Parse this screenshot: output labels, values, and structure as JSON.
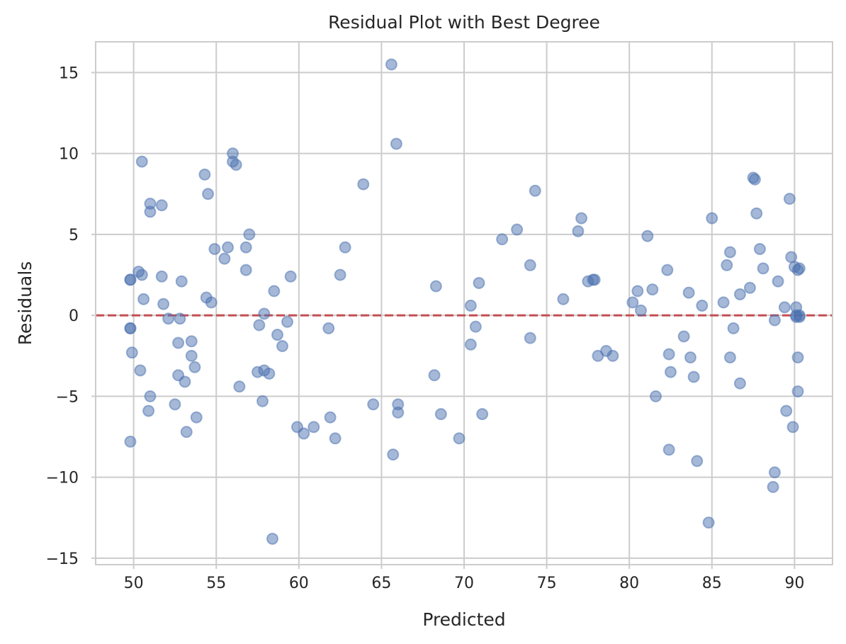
{
  "chart_data": {
    "type": "scatter",
    "title": "Residual Plot with Best Degree",
    "xlabel": "Predicted",
    "ylabel": "Residuals",
    "xlim": [
      47.7,
      92.3
    ],
    "ylim": [
      -15.4,
      16.9
    ],
    "xticks": [
      50,
      55,
      60,
      65,
      70,
      75,
      80,
      85,
      90
    ],
    "yticks": [
      15,
      10,
      5,
      0,
      -5,
      -10,
      -15
    ],
    "xtick_labels": [
      "50",
      "55",
      "60",
      "65",
      "70",
      "75",
      "80",
      "85",
      "90"
    ],
    "ytick_labels": [
      "15",
      "10",
      "5",
      "0",
      "−5",
      "−10",
      "−15"
    ],
    "grid": true,
    "reference_line": {
      "y": 0,
      "style": "dashed",
      "color": "#c44e52"
    },
    "point_color": "#4c72b0",
    "point_alpha": 0.5,
    "points": [
      [
        49.8,
        2.2
      ],
      [
        49.8,
        2.2
      ],
      [
        49.8,
        -0.8
      ],
      [
        49.8,
        -0.8
      ],
      [
        49.8,
        -7.8
      ],
      [
        49.9,
        -2.3
      ],
      [
        50.3,
        2.7
      ],
      [
        50.4,
        -3.4
      ],
      [
        50.5,
        2.5
      ],
      [
        50.5,
        9.5
      ],
      [
        50.6,
        1.0
      ],
      [
        50.9,
        -5.9
      ],
      [
        51.0,
        6.9
      ],
      [
        51.0,
        6.4
      ],
      [
        51.0,
        -5.0
      ],
      [
        51.7,
        6.8
      ],
      [
        51.7,
        2.4
      ],
      [
        51.8,
        0.7
      ],
      [
        52.1,
        -0.2
      ],
      [
        52.5,
        -5.5
      ],
      [
        52.7,
        -1.7
      ],
      [
        52.7,
        -3.7
      ],
      [
        52.8,
        -0.2
      ],
      [
        52.9,
        2.1
      ],
      [
        53.1,
        -4.1
      ],
      [
        53.2,
        -7.2
      ],
      [
        53.5,
        -1.6
      ],
      [
        53.5,
        -2.5
      ],
      [
        53.7,
        -3.2
      ],
      [
        53.8,
        -6.3
      ],
      [
        54.3,
        8.7
      ],
      [
        54.4,
        1.1
      ],
      [
        54.5,
        7.5
      ],
      [
        54.7,
        0.8
      ],
      [
        54.9,
        4.1
      ],
      [
        55.5,
        3.5
      ],
      [
        55.7,
        4.2
      ],
      [
        56.0,
        10.0
      ],
      [
        56.0,
        9.5
      ],
      [
        56.2,
        9.3
      ],
      [
        56.4,
        -4.4
      ],
      [
        56.8,
        2.8
      ],
      [
        56.8,
        4.2
      ],
      [
        57.0,
        5.0
      ],
      [
        57.5,
        -3.5
      ],
      [
        57.6,
        -0.6
      ],
      [
        57.8,
        -5.3
      ],
      [
        57.9,
        -3.4
      ],
      [
        57.9,
        0.1
      ],
      [
        58.2,
        -3.6
      ],
      [
        58.4,
        -13.8
      ],
      [
        58.5,
        1.5
      ],
      [
        58.7,
        -1.2
      ],
      [
        59.0,
        -1.9
      ],
      [
        59.3,
        -0.4
      ],
      [
        59.5,
        2.4
      ],
      [
        59.9,
        -6.9
      ],
      [
        60.3,
        -7.3
      ],
      [
        60.9,
        -6.9
      ],
      [
        61.8,
        -0.8
      ],
      [
        61.9,
        -6.3
      ],
      [
        62.2,
        -7.6
      ],
      [
        62.5,
        2.5
      ],
      [
        62.8,
        4.2
      ],
      [
        63.9,
        8.1
      ],
      [
        64.5,
        -5.5
      ],
      [
        65.6,
        15.5
      ],
      [
        65.7,
        -8.6
      ],
      [
        65.9,
        10.6
      ],
      [
        66.0,
        -5.5
      ],
      [
        66.0,
        -6.0
      ],
      [
        68.2,
        -3.7
      ],
      [
        68.3,
        1.8
      ],
      [
        68.6,
        -6.1
      ],
      [
        69.7,
        -7.6
      ],
      [
        70.4,
        0.6
      ],
      [
        70.4,
        -1.8
      ],
      [
        70.7,
        -0.7
      ],
      [
        70.9,
        2.0
      ],
      [
        71.1,
        -6.1
      ],
      [
        72.3,
        4.7
      ],
      [
        73.2,
        5.3
      ],
      [
        74.0,
        -1.4
      ],
      [
        74.0,
        3.1
      ],
      [
        74.3,
        7.7
      ],
      [
        76.0,
        1.0
      ],
      [
        76.9,
        5.2
      ],
      [
        77.1,
        6.0
      ],
      [
        77.5,
        2.1
      ],
      [
        77.8,
        2.2
      ],
      [
        77.9,
        2.2
      ],
      [
        78.1,
        -2.5
      ],
      [
        78.6,
        -2.2
      ],
      [
        79.0,
        -2.5
      ],
      [
        80.2,
        0.8
      ],
      [
        80.5,
        1.5
      ],
      [
        80.7,
        0.3
      ],
      [
        81.1,
        4.9
      ],
      [
        81.4,
        1.6
      ],
      [
        81.6,
        -5.0
      ],
      [
        82.3,
        2.8
      ],
      [
        82.4,
        -2.4
      ],
      [
        82.4,
        -8.3
      ],
      [
        82.5,
        -3.5
      ],
      [
        83.3,
        -1.3
      ],
      [
        83.6,
        1.4
      ],
      [
        83.7,
        -2.6
      ],
      [
        83.9,
        -3.8
      ],
      [
        84.1,
        -9.0
      ],
      [
        84.4,
        0.6
      ],
      [
        84.8,
        -12.8
      ],
      [
        85.0,
        6.0
      ],
      [
        85.7,
        0.8
      ],
      [
        85.9,
        3.1
      ],
      [
        86.1,
        3.9
      ],
      [
        86.1,
        -2.6
      ],
      [
        86.3,
        -0.8
      ],
      [
        86.7,
        1.3
      ],
      [
        86.7,
        -4.2
      ],
      [
        87.3,
        1.7
      ],
      [
        87.5,
        8.5
      ],
      [
        87.6,
        8.4
      ],
      [
        87.7,
        6.3
      ],
      [
        87.9,
        4.1
      ],
      [
        88.1,
        2.9
      ],
      [
        88.7,
        -10.6
      ],
      [
        88.8,
        -9.7
      ],
      [
        88.8,
        -0.3
      ],
      [
        89.0,
        2.1
      ],
      [
        89.4,
        0.5
      ],
      [
        89.5,
        -5.9
      ],
      [
        89.7,
        7.2
      ],
      [
        89.8,
        3.6
      ],
      [
        89.9,
        -6.9
      ],
      [
        90.0,
        3.0
      ],
      [
        90.1,
        0.5
      ],
      [
        90.1,
        0.0
      ],
      [
        90.1,
        -0.1
      ],
      [
        90.2,
        -2.6
      ],
      [
        90.2,
        -4.7
      ],
      [
        90.2,
        2.8
      ],
      [
        90.3,
        2.9
      ],
      [
        90.3,
        0.0
      ],
      [
        90.3,
        -0.1
      ]
    ]
  }
}
